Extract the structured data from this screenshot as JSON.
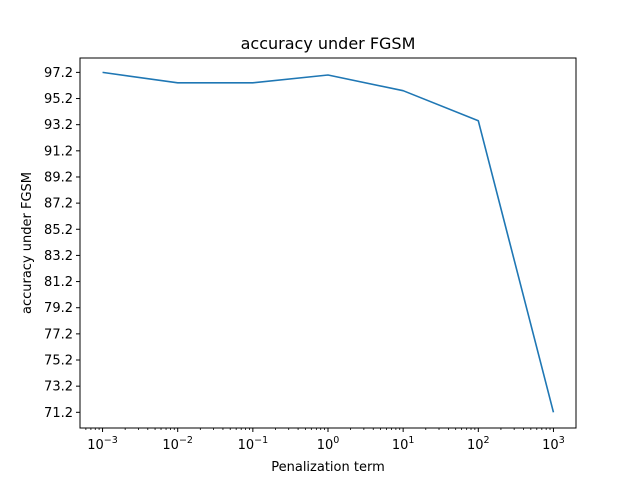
{
  "chart_data": {
    "type": "line",
    "title": "accuracy under FGSM",
    "xlabel": "Penalization term",
    "ylabel": "accuracy under FGSM",
    "xscale": "log",
    "x": [
      0.001,
      0.01,
      0.1,
      1,
      10,
      100,
      1000
    ],
    "x_tick_labels": [
      {
        "base": "10",
        "exp": "−3"
      },
      {
        "base": "10",
        "exp": "−2"
      },
      {
        "base": "10",
        "exp": "−1"
      },
      {
        "base": "10",
        "exp": "0"
      },
      {
        "base": "10",
        "exp": "1"
      },
      {
        "base": "10",
        "exp": "2"
      },
      {
        "base": "10",
        "exp": "3"
      }
    ],
    "y_ticks": [
      71.2,
      73.2,
      75.2,
      77.2,
      79.2,
      81.2,
      83.2,
      85.2,
      87.2,
      89.2,
      91.2,
      93.2,
      95.2,
      97.2
    ],
    "y_tick_labels": [
      "71.2",
      "73.2",
      "75.2",
      "77.2",
      "79.2",
      "81.2",
      "83.2",
      "85.2",
      "87.2",
      "89.2",
      "91.2",
      "93.2",
      "95.2",
      "97.2"
    ],
    "xlim_log10": [
      -3.3,
      3.3
    ],
    "ylim": [
      70.0,
      98.3
    ],
    "grid": false,
    "legend": "none",
    "series": [
      {
        "color": "#1f77b4",
        "values": [
          97.2,
          96.4,
          96.4,
          97.0,
          95.8,
          93.5,
          71.2
        ]
      }
    ]
  }
}
